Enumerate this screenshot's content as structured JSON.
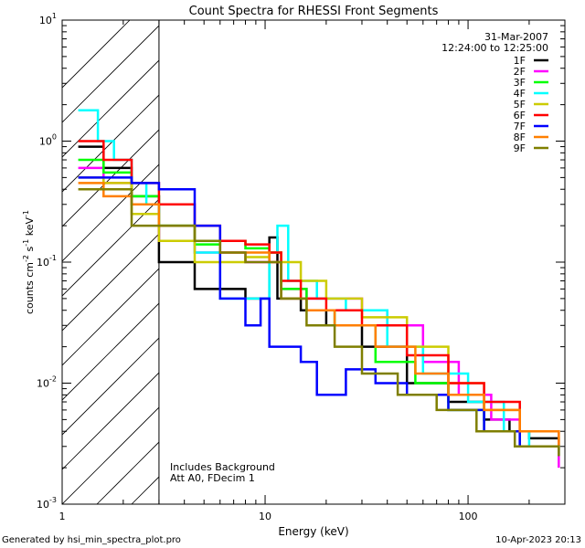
{
  "footer": {
    "left": "Generated by hsi_min_spectra_plot.pro",
    "right": "10-Apr-2023 20:13"
  },
  "annotations": {
    "bottom_line1": "Includes Background",
    "bottom_line2": "Att A0, FDecim 1"
  },
  "chart_data": {
    "type": "line",
    "title": "Count Spectra for RHESSI Front Segments",
    "date": "31-Mar-2007",
    "time_range": "12:24:00 to 12:25:00",
    "xlabel": "Energy (keV)",
    "ylabel": {
      "base": "counts cm",
      "exp1": "-2",
      "mid1": " s",
      "exp2": "-1",
      "mid2": " keV",
      "exp3": "-1"
    },
    "xscale": "log",
    "yscale": "log",
    "xlim": [
      1,
      300
    ],
    "ylim": [
      0.001,
      10
    ],
    "xticks": [
      {
        "v": 1,
        "label": "1"
      },
      {
        "v": 10,
        "label": "10"
      },
      {
        "v": 100,
        "label": "100"
      }
    ],
    "yticks": [
      {
        "v": 0.001,
        "base": "10",
        "exp": "-3"
      },
      {
        "v": 0.01,
        "base": "10",
        "exp": "-2"
      },
      {
        "v": 0.1,
        "base": "10",
        "exp": "-1"
      },
      {
        "v": 1,
        "base": "10",
        "exp": "0"
      },
      {
        "v": 10,
        "base": "10",
        "exp": "1"
      }
    ],
    "hatched_region_max_energy": 3,
    "legend_position": "top-right",
    "series": [
      {
        "name": "1F",
        "color": "#000000",
        "values": [
          [
            1.2,
            0.9
          ],
          [
            1.6,
            0.6
          ],
          [
            2.2,
            0.35
          ],
          [
            3.0,
            0.1
          ],
          [
            4.5,
            0.06
          ],
          [
            6.0,
            0.06
          ],
          [
            8.0,
            0.05
          ],
          [
            10.5,
            0.16
          ],
          [
            11.5,
            0.05
          ],
          [
            15,
            0.04
          ],
          [
            20,
            0.03
          ],
          [
            30,
            0.02
          ],
          [
            50,
            0.01
          ],
          [
            80,
            0.007
          ],
          [
            120,
            0.005
          ],
          [
            160,
            0.004
          ],
          [
            200,
            0.0035
          ],
          [
            280,
            0.003
          ]
        ]
      },
      {
        "name": "2F",
        "color": "#ff00ff",
        "values": [
          [
            1.2,
            0.6
          ],
          [
            1.6,
            0.45
          ],
          [
            2.2,
            0.3
          ],
          [
            3.0,
            0.15
          ],
          [
            4.5,
            0.12
          ],
          [
            6.0,
            0.12
          ],
          [
            8.0,
            0.1
          ],
          [
            10.5,
            0.1
          ],
          [
            12,
            0.06
          ],
          [
            16,
            0.05
          ],
          [
            22,
            0.05
          ],
          [
            30,
            0.04
          ],
          [
            40,
            0.03
          ],
          [
            60,
            0.015
          ],
          [
            90,
            0.008
          ],
          [
            130,
            0.005
          ],
          [
            180,
            0.003
          ],
          [
            280,
            0.002
          ]
        ]
      },
      {
        "name": "3F",
        "color": "#00ff00",
        "values": [
          [
            1.2,
            0.7
          ],
          [
            1.6,
            0.55
          ],
          [
            2.2,
            0.35
          ],
          [
            3.0,
            0.2
          ],
          [
            4.5,
            0.14
          ],
          [
            6.0,
            0.15
          ],
          [
            8.0,
            0.13
          ],
          [
            10.5,
            0.12
          ],
          [
            12,
            0.06
          ],
          [
            16,
            0.04
          ],
          [
            22,
            0.03
          ],
          [
            35,
            0.015
          ],
          [
            55,
            0.01
          ],
          [
            80,
            0.006
          ],
          [
            120,
            0.004
          ],
          [
            180,
            0.003
          ],
          [
            280,
            0.0025
          ]
        ]
      },
      {
        "name": "4F",
        "color": "#00ffff",
        "values": [
          [
            1.2,
            1.8
          ],
          [
            1.5,
            1.0
          ],
          [
            1.8,
            0.7
          ],
          [
            2.2,
            0.45
          ],
          [
            2.6,
            0.3
          ],
          [
            3.0,
            0.2
          ],
          [
            4.5,
            0.12
          ],
          [
            6.0,
            0.05
          ],
          [
            8.0,
            0.05
          ],
          [
            10.5,
            0.12
          ],
          [
            11.5,
            0.2
          ],
          [
            13,
            0.07
          ],
          [
            18,
            0.05
          ],
          [
            25,
            0.04
          ],
          [
            40,
            0.02
          ],
          [
            60,
            0.012
          ],
          [
            100,
            0.007
          ],
          [
            150,
            0.004
          ],
          [
            200,
            0.003
          ],
          [
            280,
            0.0025
          ]
        ]
      },
      {
        "name": "5F",
        "color": "#cccc00",
        "values": [
          [
            1.2,
            0.5
          ],
          [
            1.6,
            0.45
          ],
          [
            2.2,
            0.25
          ],
          [
            3.0,
            0.15
          ],
          [
            4.5,
            0.1
          ],
          [
            6.0,
            0.1
          ],
          [
            8.0,
            0.11
          ],
          [
            10.5,
            0.12
          ],
          [
            12,
            0.1
          ],
          [
            15,
            0.07
          ],
          [
            20,
            0.05
          ],
          [
            30,
            0.035
          ],
          [
            50,
            0.02
          ],
          [
            80,
            0.01
          ],
          [
            120,
            0.006
          ],
          [
            180,
            0.004
          ],
          [
            280,
            0.003
          ]
        ]
      },
      {
        "name": "6F",
        "color": "#ff0000",
        "values": [
          [
            1.2,
            1.0
          ],
          [
            1.6,
            0.7
          ],
          [
            2.2,
            0.45
          ],
          [
            3.0,
            0.3
          ],
          [
            4.5,
            0.2
          ],
          [
            6.0,
            0.15
          ],
          [
            8.0,
            0.14
          ],
          [
            10.5,
            0.12
          ],
          [
            12,
            0.07
          ],
          [
            15,
            0.05
          ],
          [
            20,
            0.04
          ],
          [
            30,
            0.03
          ],
          [
            50,
            0.017
          ],
          [
            80,
            0.01
          ],
          [
            120,
            0.007
          ],
          [
            180,
            0.004
          ],
          [
            280,
            0.003
          ]
        ]
      },
      {
        "name": "7F",
        "color": "#0000ff",
        "values": [
          [
            1.2,
            0.5
          ],
          [
            1.6,
            0.5
          ],
          [
            2.2,
            0.45
          ],
          [
            3.0,
            0.4
          ],
          [
            4.5,
            0.2
          ],
          [
            6.0,
            0.05
          ],
          [
            8.0,
            0.03
          ],
          [
            9.5,
            0.05
          ],
          [
            10.5,
            0.02
          ],
          [
            12,
            0.02
          ],
          [
            15,
            0.015
          ],
          [
            18,
            0.008
          ],
          [
            25,
            0.013
          ],
          [
            35,
            0.01
          ],
          [
            50,
            0.008
          ],
          [
            80,
            0.006
          ],
          [
            120,
            0.004
          ],
          [
            180,
            0.003
          ],
          [
            280,
            0.0025
          ]
        ]
      },
      {
        "name": "8F",
        "color": "#ff7f00",
        "values": [
          [
            1.2,
            0.45
          ],
          [
            1.6,
            0.35
          ],
          [
            2.2,
            0.3
          ],
          [
            3.0,
            0.2
          ],
          [
            4.5,
            0.15
          ],
          [
            6.0,
            0.12
          ],
          [
            8.0,
            0.12
          ],
          [
            10.5,
            0.1
          ],
          [
            12,
            0.05
          ],
          [
            16,
            0.04
          ],
          [
            22,
            0.03
          ],
          [
            35,
            0.02
          ],
          [
            55,
            0.012
          ],
          [
            80,
            0.008
          ],
          [
            120,
            0.006
          ],
          [
            180,
            0.004
          ],
          [
            280,
            0.0025
          ]
        ]
      },
      {
        "name": "9F",
        "color": "#7f7f00",
        "values": [
          [
            1.2,
            0.4
          ],
          [
            1.6,
            0.4
          ],
          [
            2.2,
            0.2
          ],
          [
            3.0,
            0.2
          ],
          [
            4.5,
            0.15
          ],
          [
            6.0,
            0.12
          ],
          [
            8.0,
            0.1
          ],
          [
            10.5,
            0.1
          ],
          [
            12,
            0.05
          ],
          [
            16,
            0.03
          ],
          [
            22,
            0.02
          ],
          [
            30,
            0.012
          ],
          [
            45,
            0.008
          ],
          [
            70,
            0.006
          ],
          [
            110,
            0.004
          ],
          [
            170,
            0.003
          ],
          [
            280,
            0.0025
          ]
        ]
      }
    ]
  }
}
